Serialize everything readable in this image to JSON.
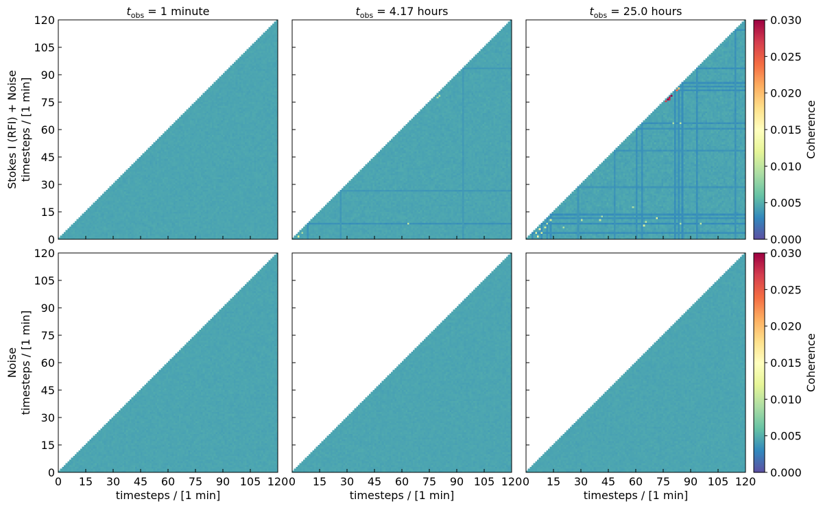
{
  "chart_data": {
    "type": "heatmap",
    "colormap": "Spectral_r",
    "colorbar_label": "Coherence",
    "colorbar_ticks": [
      "0.000",
      "0.005",
      "0.010",
      "0.015",
      "0.020",
      "0.025",
      "0.030"
    ],
    "clim": [
      0.0,
      0.03
    ],
    "xlabel": "timesteps / [1 min]",
    "xlim": [
      0,
      120
    ],
    "ylim": [
      0,
      120
    ],
    "tick_labels": [
      "0",
      "15",
      "30",
      "45",
      "60",
      "75",
      "90",
      "105",
      "120"
    ],
    "columns": [
      {
        "title_var": "t",
        "title_sub": "obs",
        "title_rest": " = 1 minute"
      },
      {
        "title_var": "t",
        "title_sub": "obs",
        "title_rest": " = 4.17 hours"
      },
      {
        "title_var": "t",
        "title_sub": "obs",
        "title_rest": " = 25.0 hours"
      }
    ],
    "rows": [
      {
        "ylabel_line1": "Stokes I (RFI) + Noise",
        "ylabel_line2": "timesteps / [1 min]"
      },
      {
        "ylabel_line1": "Noise",
        "ylabel_line2": "timesteps / [1 min]"
      }
    ],
    "background_level": 0.0045,
    "panels": [
      {
        "row": 0,
        "col": 0,
        "noise": 0.00025,
        "lines": [],
        "hotspots": []
      },
      {
        "row": 0,
        "col": 1,
        "noise": 0.0003,
        "lines": [
          {
            "index": 8,
            "value": 0.0035
          },
          {
            "index": 26,
            "value": 0.0038
          },
          {
            "index": 93,
            "value": 0.0039
          }
        ],
        "hotspots": [
          {
            "x": 79,
            "y": 77,
            "value": 0.009
          },
          {
            "x": 80,
            "y": 78,
            "value": 0.01
          },
          {
            "x": 3,
            "y": 1,
            "value": 0.012
          },
          {
            "x": 5,
            "y": 3,
            "value": 0.009
          },
          {
            "x": 63,
            "y": 8,
            "value": 0.01
          }
        ]
      },
      {
        "row": 0,
        "col": 2,
        "noise": 0.0004,
        "lines": [
          {
            "index": 3,
            "value": 0.0033
          },
          {
            "index": 8,
            "value": 0.0032
          },
          {
            "index": 11,
            "value": 0.0034
          },
          {
            "index": 13,
            "value": 0.0033
          },
          {
            "index": 28,
            "value": 0.0037
          },
          {
            "index": 48,
            "value": 0.0036
          },
          {
            "index": 60,
            "value": 0.0035
          },
          {
            "index": 63,
            "value": 0.0034
          },
          {
            "index": 81,
            "value": 0.0033
          },
          {
            "index": 83,
            "value": 0.0034
          },
          {
            "index": 85,
            "value": 0.0033
          },
          {
            "index": 93,
            "value": 0.0034
          },
          {
            "index": 114,
            "value": 0.0035
          }
        ],
        "hotspots": [
          {
            "x": 77,
            "y": 76,
            "value": 0.03
          },
          {
            "x": 78,
            "y": 77,
            "value": 0.029
          },
          {
            "x": 79,
            "y": 78,
            "value": 0.03
          },
          {
            "x": 78,
            "y": 76,
            "value": 0.028
          },
          {
            "x": 76,
            "y": 75,
            "value": 0.027
          },
          {
            "x": 82,
            "y": 81,
            "value": 0.024
          },
          {
            "x": 83,
            "y": 82,
            "value": 0.02
          },
          {
            "x": 6,
            "y": 1,
            "value": 0.014
          },
          {
            "x": 8,
            "y": 3,
            "value": 0.012
          },
          {
            "x": 10,
            "y": 6,
            "value": 0.011
          },
          {
            "x": 11,
            "y": 8,
            "value": 0.01
          },
          {
            "x": 13,
            "y": 10,
            "value": 0.011
          },
          {
            "x": 5,
            "y": 3,
            "value": 0.013
          },
          {
            "x": 7,
            "y": 5,
            "value": 0.016
          },
          {
            "x": 40,
            "y": 10,
            "value": 0.01
          },
          {
            "x": 41,
            "y": 12,
            "value": 0.009
          },
          {
            "x": 64,
            "y": 7,
            "value": 0.011
          },
          {
            "x": 65,
            "y": 9,
            "value": 0.01
          },
          {
            "x": 71,
            "y": 11,
            "value": 0.012
          },
          {
            "x": 84,
            "y": 8,
            "value": 0.009
          },
          {
            "x": 95,
            "y": 8,
            "value": 0.01
          },
          {
            "x": 58,
            "y": 17,
            "value": 0.009
          },
          {
            "x": 80,
            "y": 63,
            "value": 0.009
          },
          {
            "x": 84,
            "y": 63,
            "value": 0.01
          },
          {
            "x": 30,
            "y": 10,
            "value": 0.01
          },
          {
            "x": 20,
            "y": 6,
            "value": 0.009
          }
        ]
      },
      {
        "row": 1,
        "col": 0,
        "noise": 0.00025,
        "lines": [],
        "hotspots": []
      },
      {
        "row": 1,
        "col": 1,
        "noise": 0.00025,
        "lines": [],
        "hotspots": []
      },
      {
        "row": 1,
        "col": 2,
        "noise": 0.00025,
        "lines": [],
        "hotspots": []
      }
    ]
  }
}
